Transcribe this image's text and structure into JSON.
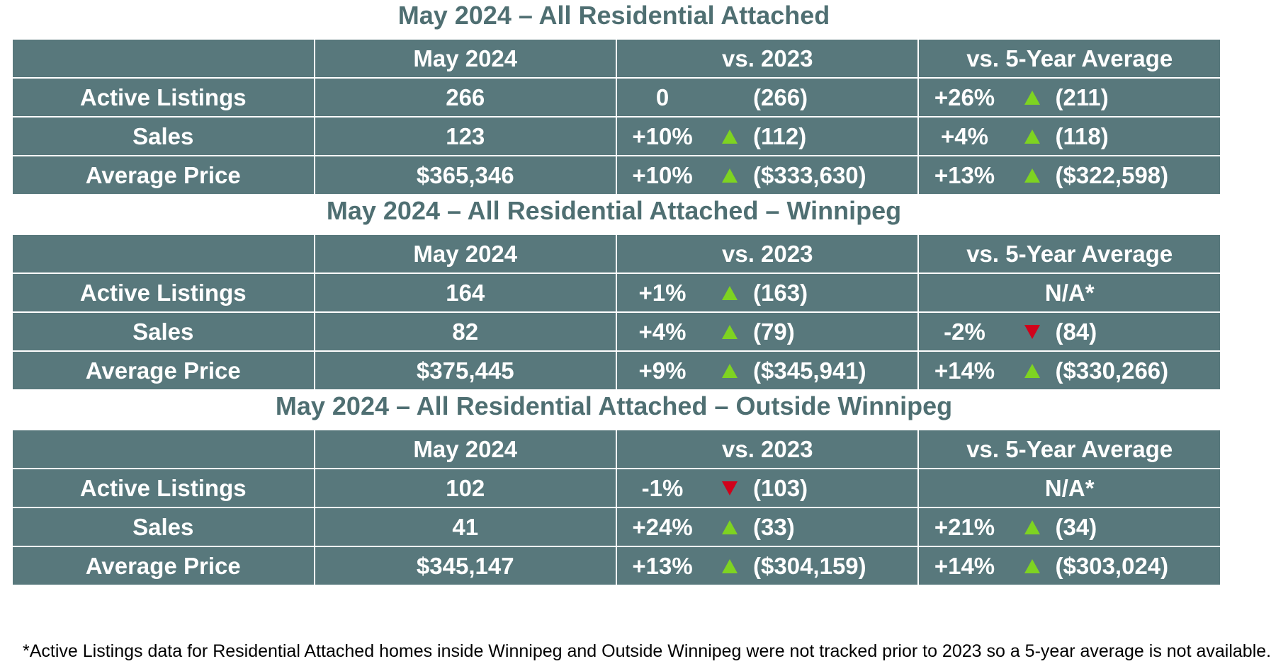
{
  "tables": [
    {
      "title": "May 2024 – All Residential Attached",
      "headers": [
        "",
        "May 2024",
        "vs. 2023",
        "vs. 5-Year Average"
      ],
      "rows": [
        {
          "label": "Active Listings",
          "value": "266",
          "vs2023": {
            "pct": "0",
            "arrow": "none",
            "prev": "(266)"
          },
          "vs5yr": {
            "pct": "+26%",
            "arrow": "up",
            "prev": "(211)"
          }
        },
        {
          "label": "Sales",
          "value": "123",
          "vs2023": {
            "pct": "+10%",
            "arrow": "up",
            "prev": "(112)"
          },
          "vs5yr": {
            "pct": "+4%",
            "arrow": "up",
            "prev": "(118)"
          }
        },
        {
          "label": "Average Price",
          "value": "$365,346",
          "vs2023": {
            "pct": "+10%",
            "arrow": "up",
            "prev": "($333,630)"
          },
          "vs5yr": {
            "pct": "+13%",
            "arrow": "up",
            "prev": "($322,598)"
          }
        }
      ]
    },
    {
      "title": "May 2024 – All Residential Attached – Winnipeg",
      "headers": [
        "",
        "May 2024",
        "vs. 2023",
        "vs. 5-Year Average"
      ],
      "rows": [
        {
          "label": "Active Listings",
          "value": "164",
          "vs2023": {
            "pct": "+1%",
            "arrow": "up",
            "prev": "(163)"
          },
          "vs5yr": {
            "na": "N/A*"
          }
        },
        {
          "label": "Sales",
          "value": "82",
          "vs2023": {
            "pct": "+4%",
            "arrow": "up",
            "prev": "(79)"
          },
          "vs5yr": {
            "pct": "-2%",
            "arrow": "down",
            "prev": "(84)"
          }
        },
        {
          "label": "Average Price",
          "value": "$375,445",
          "vs2023": {
            "pct": "+9%",
            "arrow": "up",
            "prev": "($345,941)"
          },
          "vs5yr": {
            "pct": "+14%",
            "arrow": "up",
            "prev": "($330,266)"
          }
        }
      ]
    },
    {
      "title": "May 2024 – All Residential Attached – Outside Winnipeg",
      "headers": [
        "",
        "May 2024",
        "vs. 2023",
        "vs. 5-Year Average"
      ],
      "rows": [
        {
          "label": "Active Listings",
          "value": "102",
          "vs2023": {
            "pct": "-1%",
            "arrow": "down",
            "prev": "(103)"
          },
          "vs5yr": {
            "na": "N/A*"
          }
        },
        {
          "label": "Sales",
          "value": "41",
          "vs2023": {
            "pct": "+24%",
            "arrow": "up",
            "prev": "(33)"
          },
          "vs5yr": {
            "pct": "+21%",
            "arrow": "up",
            "prev": "(34)"
          }
        },
        {
          "label": "Average Price",
          "value": "$345,147",
          "vs2023": {
            "pct": "+13%",
            "arrow": "up",
            "prev": "($304,159)"
          },
          "vs5yr": {
            "pct": "+14%",
            "arrow": "up",
            "prev": "($303,024)"
          }
        }
      ]
    }
  ],
  "footnote": "*Active Listings data for Residential Attached homes inside Winnipeg and Outside Winnipeg were not tracked prior to 2023 so a 5-year average is not available.",
  "colors": {
    "table_bg": "#58787c",
    "title_text": "#4f6f72",
    "arrow_up": "#7ed321",
    "arrow_down": "#d0021b"
  }
}
